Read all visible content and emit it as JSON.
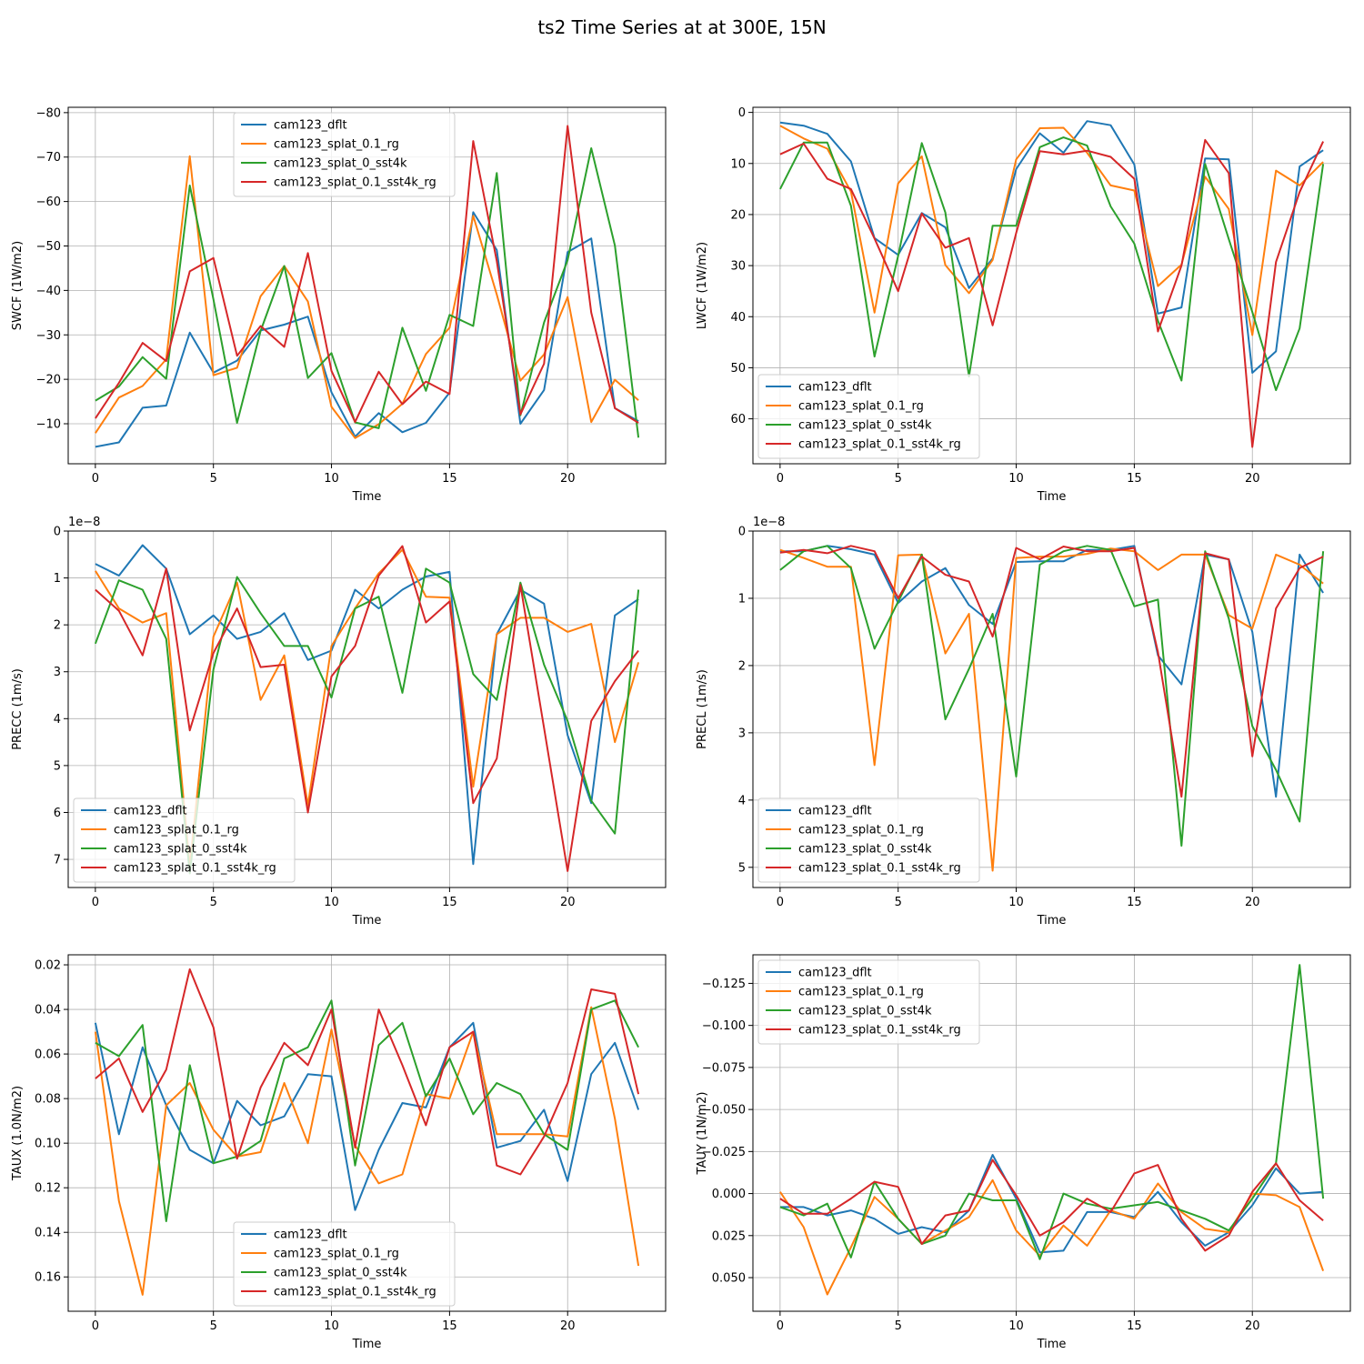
{
  "figure_title": "ts2 Time Series at at 300E, 15N",
  "colors": {
    "cam123_dflt": "#1f77b4",
    "cam123_splat_0.1_rg": "#ff7f0e",
    "cam123_splat_0_sst4k": "#2ca02c",
    "cam123_splat_0.1_sst4k_rg": "#d62728"
  },
  "chart_data": [
    {
      "type": "line",
      "xlabel": "Time",
      "ylabel": "SWCF (1W/m2)",
      "y_inverted": true,
      "xlim": [
        -1.15,
        24.15
      ],
      "ylim": [
        -1.0,
        -81.2
      ],
      "xticks": [
        0,
        5,
        10,
        15,
        20
      ],
      "xtick_labels": [
        "0",
        "5",
        "10",
        "15",
        "20"
      ],
      "yticks": [
        -10,
        -20,
        -30,
        -40,
        -50,
        -60,
        -70,
        -80
      ],
      "ytick_labels": [
        "−10",
        "−20",
        "−30",
        "−40",
        "−50",
        "−60",
        "−70",
        "−80"
      ],
      "offset_label": "",
      "legend_loc": "upper-center",
      "grid": true,
      "x": [
        0,
        1,
        2,
        3,
        4,
        5,
        6,
        7,
        8,
        9,
        10,
        11,
        12,
        13,
        14,
        15,
        16,
        17,
        18,
        19,
        20,
        21,
        22,
        23
      ],
      "series": [
        {
          "name": "cam123_dflt",
          "values": [
            -4.8,
            -5.8,
            -13.6,
            -14.1,
            -30.5,
            -21.5,
            -24.2,
            -31.0,
            -32.3,
            -34.1,
            -17.1,
            -7.1,
            -12.4,
            -8.1,
            -10.2,
            -17.0,
            -57.6,
            -49.1,
            -10.0,
            -17.6,
            -48.6,
            -51.7,
            -13.5,
            -10.6
          ]
        },
        {
          "name": "cam123_splat_0.1_rg",
          "values": [
            -7.9,
            -15.9,
            -18.5,
            -24.5,
            -70.2,
            -20.9,
            -22.6,
            -38.7,
            -45.5,
            -37.5,
            -13.8,
            -6.8,
            -9.9,
            -14.5,
            -25.7,
            -31.6,
            -56.8,
            -39.1,
            -19.7,
            -25.6,
            -38.5,
            -10.4,
            -19.9,
            -15.3
          ]
        },
        {
          "name": "cam123_splat_0_sst4k",
          "values": [
            -15.2,
            -18.4,
            -25.0,
            -20.1,
            -63.6,
            -38.0,
            -10.2,
            -30.9,
            -45.5,
            -20.3,
            -25.9,
            -10.3,
            -9.0,
            -31.6,
            -17.4,
            -34.5,
            -32.0,
            -66.4,
            -11.9,
            -32.8,
            -46.8,
            -72.0,
            -50.1,
            -6.9
          ]
        },
        {
          "name": "cam123_splat_0.1_sst4k_rg",
          "values": [
            -11.2,
            -19.2,
            -28.2,
            -24.1,
            -44.3,
            -47.3,
            -25.3,
            -32.0,
            -27.3,
            -48.4,
            -21.9,
            -10.4,
            -21.7,
            -14.4,
            -19.5,
            -16.7,
            -73.6,
            -46.6,
            -12.1,
            -23.5,
            -77.0,
            -35.0,
            -13.5,
            -10.2
          ]
        }
      ]
    },
    {
      "type": "line",
      "xlabel": "Time",
      "ylabel": "LWCF (1W/m2)",
      "y_inverted": true,
      "xlim": [
        -1.15,
        24.15
      ],
      "ylim": [
        68.8,
        -1.0
      ],
      "xticks": [
        0,
        5,
        10,
        15,
        20
      ],
      "xtick_labels": [
        "0",
        "5",
        "10",
        "15",
        "20"
      ],
      "yticks": [
        0,
        10,
        20,
        30,
        40,
        50,
        60
      ],
      "ytick_labels": [
        "0",
        "10",
        "20",
        "30",
        "40",
        "50",
        "60"
      ],
      "offset_label": "",
      "legend_loc": "lower-left",
      "grid": true,
      "x": [
        0,
        1,
        2,
        3,
        4,
        5,
        6,
        7,
        8,
        9,
        10,
        11,
        12,
        13,
        14,
        15,
        16,
        17,
        18,
        19,
        20,
        21,
        22,
        23
      ],
      "series": [
        {
          "name": "cam123_dflt",
          "values": [
            2.0,
            2.6,
            4.2,
            9.6,
            24.6,
            27.9,
            19.7,
            22.5,
            34.4,
            28.6,
            11.1,
            4.1,
            7.9,
            1.7,
            2.5,
            10.2,
            39.4,
            38.2,
            9.0,
            9.2,
            51.0,
            46.8,
            10.6,
            7.4
          ]
        },
        {
          "name": "cam123_splat_0.1_rg",
          "values": [
            2.6,
            5.1,
            7.1,
            15.5,
            39.2,
            13.9,
            8.6,
            29.9,
            35.4,
            28.9,
            9.2,
            3.1,
            3.0,
            7.9,
            14.3,
            15.3,
            34.0,
            29.8,
            12.6,
            18.9,
            43.6,
            11.4,
            14.3,
            9.7
          ]
        },
        {
          "name": "cam123_splat_0_sst4k",
          "values": [
            15.0,
            5.9,
            5.9,
            18.3,
            47.8,
            28.1,
            6.0,
            19.6,
            51.7,
            22.2,
            22.2,
            6.8,
            4.9,
            6.5,
            18.4,
            25.7,
            40.8,
            52.5,
            10.1,
            24.8,
            39.1,
            54.4,
            42.3,
            10.1
          ]
        },
        {
          "name": "cam123_splat_0.1_sst4k_rg",
          "values": [
            8.2,
            6.1,
            13.0,
            15.0,
            24.7,
            35.0,
            19.8,
            26.5,
            24.6,
            41.7,
            23.6,
            7.6,
            8.2,
            7.5,
            8.7,
            13.0,
            42.9,
            30.0,
            5.4,
            11.9,
            65.5,
            29.3,
            15.6,
            5.7
          ]
        }
      ]
    },
    {
      "type": "line",
      "xlabel": "Time",
      "ylabel": "PRECC (1m/s)",
      "y_inverted": true,
      "xlim": [
        -1.15,
        24.15
      ],
      "ylim": [
        7.6,
        0.0
      ],
      "xticks": [
        0,
        5,
        10,
        15,
        20
      ],
      "xtick_labels": [
        "0",
        "5",
        "10",
        "15",
        "20"
      ],
      "yticks": [
        0,
        1,
        2,
        3,
        4,
        5,
        6,
        7
      ],
      "ytick_labels": [
        "0",
        "1",
        "2",
        "3",
        "4",
        "5",
        "6",
        "7"
      ],
      "offset_label": "1e−8",
      "legend_loc": "lower-left",
      "grid": true,
      "x": [
        0,
        1,
        2,
        3,
        4,
        5,
        6,
        7,
        8,
        9,
        10,
        11,
        12,
        13,
        14,
        15,
        16,
        17,
        18,
        19,
        20,
        21,
        22,
        23
      ],
      "series": [
        {
          "name": "cam123_dflt",
          "values": [
            0.7,
            0.95,
            0.3,
            0.8,
            2.2,
            1.8,
            2.3,
            2.15,
            1.75,
            2.75,
            2.55,
            1.25,
            1.65,
            1.25,
            0.97,
            0.87,
            7.1,
            2.2,
            1.25,
            1.55,
            4.35,
            5.8,
            1.8,
            1.45
          ]
        },
        {
          "name": "cam123_splat_0.1_rg",
          "values": [
            0.85,
            1.65,
            1.95,
            1.75,
            7.15,
            2.25,
            1.1,
            3.6,
            2.65,
            5.85,
            2.45,
            1.65,
            0.9,
            0.4,
            1.4,
            1.42,
            5.45,
            2.2,
            1.85,
            1.85,
            2.15,
            1.98,
            4.5,
            2.8
          ]
        },
        {
          "name": "cam123_splat_0_sst4k",
          "values": [
            2.4,
            1.05,
            1.25,
            2.3,
            7.3,
            2.95,
            0.98,
            1.75,
            2.45,
            2.45,
            3.55,
            1.65,
            1.4,
            3.45,
            0.8,
            1.1,
            3.05,
            3.6,
            1.1,
            2.85,
            4.05,
            5.75,
            6.45,
            1.25
          ]
        },
        {
          "name": "cam123_splat_0.1_sst4k_rg",
          "values": [
            1.25,
            1.7,
            2.65,
            0.8,
            4.25,
            2.6,
            1.65,
            2.9,
            2.85,
            6.0,
            3.1,
            2.45,
            0.95,
            0.32,
            1.95,
            1.5,
            5.8,
            4.85,
            1.15,
            4.2,
            7.25,
            4.05,
            3.2,
            2.55
          ]
        }
      ]
    },
    {
      "type": "line",
      "xlabel": "Time",
      "ylabel": "PRECL (1m/s)",
      "y_inverted": true,
      "xlim": [
        -1.15,
        24.15
      ],
      "ylim": [
        5.3,
        0.0
      ],
      "xticks": [
        0,
        5,
        10,
        15,
        20
      ],
      "xtick_labels": [
        "0",
        "5",
        "10",
        "15",
        "20"
      ],
      "yticks": [
        0,
        1,
        2,
        3,
        4,
        5
      ],
      "ytick_labels": [
        "0",
        "1",
        "2",
        "3",
        "4",
        "5"
      ],
      "offset_label": "1e−8",
      "legend_loc": "lower-left",
      "grid": true,
      "x": [
        0,
        1,
        2,
        3,
        4,
        5,
        6,
        7,
        8,
        9,
        10,
        11,
        12,
        13,
        14,
        15,
        16,
        17,
        18,
        19,
        20,
        21,
        22,
        23
      ],
      "series": [
        {
          "name": "cam123_dflt",
          "values": [
            0.3,
            0.3,
            0.22,
            0.27,
            0.35,
            1.07,
            0.75,
            0.55,
            1.1,
            1.38,
            0.46,
            0.45,
            0.45,
            0.28,
            0.28,
            0.22,
            1.85,
            2.28,
            0.35,
            0.42,
            1.5,
            3.95,
            0.35,
            0.92
          ]
        },
        {
          "name": "cam123_splat_0.1_rg",
          "values": [
            0.28,
            0.4,
            0.53,
            0.53,
            3.48,
            0.36,
            0.35,
            1.82,
            1.23,
            5.05,
            0.4,
            0.38,
            0.38,
            0.34,
            0.26,
            0.3,
            0.58,
            0.35,
            0.35,
            1.25,
            1.45,
            0.35,
            0.5,
            0.78
          ]
        },
        {
          "name": "cam123_splat_0_sst4k",
          "values": [
            0.58,
            0.3,
            0.22,
            0.55,
            1.75,
            1.05,
            0.35,
            2.8,
            2.05,
            1.23,
            3.65,
            0.5,
            0.3,
            0.22,
            0.28,
            1.12,
            1.02,
            4.68,
            0.3,
            1.3,
            2.9,
            3.55,
            4.32,
            0.3
          ]
        },
        {
          "name": "cam123_splat_0.1_sst4k_rg",
          "values": [
            0.32,
            0.28,
            0.33,
            0.22,
            0.3,
            1.0,
            0.38,
            0.65,
            0.75,
            1.57,
            0.25,
            0.42,
            0.23,
            0.3,
            0.3,
            0.25,
            1.8,
            3.95,
            0.33,
            0.42,
            3.35,
            1.15,
            0.55,
            0.38
          ]
        }
      ]
    },
    {
      "type": "line",
      "xlabel": "Time",
      "ylabel": "TAUX (1.0N/m2)",
      "y_inverted": true,
      "xlim": [
        -1.15,
        24.15
      ],
      "ylim": [
        0.1754,
        0.0155
      ],
      "xticks": [
        0,
        5,
        10,
        15,
        20
      ],
      "xtick_labels": [
        "0",
        "5",
        "10",
        "15",
        "20"
      ],
      "yticks": [
        0.02,
        0.04,
        0.06,
        0.08,
        0.1,
        0.12,
        0.14,
        0.16
      ],
      "ytick_labels": [
        "0.02",
        "0.04",
        "0.06",
        "0.08",
        "0.10",
        "0.12",
        "0.14",
        "0.16"
      ],
      "offset_label": "",
      "legend_loc": "lower-center",
      "grid": true,
      "x": [
        0,
        1,
        2,
        3,
        4,
        5,
        6,
        7,
        8,
        9,
        10,
        11,
        12,
        13,
        14,
        15,
        16,
        17,
        18,
        19,
        20,
        21,
        22,
        23
      ],
      "series": [
        {
          "name": "cam123_dflt",
          "values": [
            0.046,
            0.096,
            0.057,
            0.083,
            0.103,
            0.109,
            0.081,
            0.092,
            0.088,
            0.069,
            0.07,
            0.13,
            0.103,
            0.082,
            0.084,
            0.057,
            0.046,
            0.102,
            0.099,
            0.085,
            0.117,
            0.069,
            0.055,
            0.085
          ]
        },
        {
          "name": "cam123_splat_0.1_rg",
          "values": [
            0.05,
            0.126,
            0.168,
            0.083,
            0.073,
            0.094,
            0.106,
            0.104,
            0.073,
            0.1,
            0.049,
            0.101,
            0.118,
            0.114,
            0.078,
            0.08,
            0.05,
            0.096,
            0.096,
            0.096,
            0.097,
            0.039,
            0.089,
            0.155
          ]
        },
        {
          "name": "cam123_splat_0_sst4k",
          "values": [
            0.055,
            0.061,
            0.047,
            0.135,
            0.065,
            0.109,
            0.106,
            0.099,
            0.062,
            0.057,
            0.036,
            0.11,
            0.056,
            0.046,
            0.079,
            0.062,
            0.087,
            0.073,
            0.078,
            0.096,
            0.103,
            0.04,
            0.036,
            0.057
          ]
        },
        {
          "name": "cam123_splat_0.1_sst4k_rg",
          "values": [
            0.071,
            0.062,
            0.086,
            0.067,
            0.022,
            0.048,
            0.107,
            0.075,
            0.055,
            0.065,
            0.04,
            0.102,
            0.04,
            0.065,
            0.092,
            0.057,
            0.05,
            0.11,
            0.114,
            0.097,
            0.073,
            0.031,
            0.033,
            0.078
          ]
        }
      ]
    },
    {
      "type": "line",
      "xlabel": "Time",
      "ylabel": "TAUY (1N/m2)",
      "y_inverted": true,
      "xlim": [
        -1.15,
        24.15
      ],
      "ylim": [
        0.07,
        -0.142
      ],
      "xticks": [
        0,
        5,
        10,
        15,
        20
      ],
      "xtick_labels": [
        "0",
        "5",
        "10",
        "15",
        "20"
      ],
      "yticks": [
        -0.125,
        -0.1,
        -0.075,
        -0.05,
        -0.025,
        0.0,
        0.025,
        0.05
      ],
      "ytick_labels": [
        "−0.125",
        "−0.100",
        "−0.075",
        "−0.050",
        "−0.025",
        "0.000",
        "0.025",
        "0.050"
      ],
      "offset_label": "",
      "legend_loc": "upper-left",
      "grid": true,
      "x": [
        0,
        1,
        2,
        3,
        4,
        5,
        6,
        7,
        8,
        9,
        10,
        11,
        12,
        13,
        14,
        15,
        16,
        17,
        18,
        19,
        20,
        21,
        22,
        23
      ],
      "series": [
        {
          "name": "cam123_dflt",
          "values": [
            0.008,
            0.008,
            0.013,
            0.01,
            0.015,
            0.024,
            0.02,
            0.023,
            0.01,
            -0.023,
            0.003,
            0.035,
            0.034,
            0.011,
            0.011,
            0.014,
            -0.001,
            0.017,
            0.031,
            0.023,
            0.007,
            -0.015,
            0.0,
            -0.001
          ]
        },
        {
          "name": "cam123_splat_0.1_rg",
          "values": [
            -0.001,
            0.02,
            0.06,
            0.032,
            0.002,
            0.015,
            0.03,
            0.022,
            0.014,
            -0.008,
            0.022,
            0.037,
            0.019,
            0.031,
            0.01,
            0.015,
            -0.006,
            0.011,
            0.021,
            0.023,
            0.0,
            0.001,
            0.008,
            0.046
          ]
        },
        {
          "name": "cam123_splat_0_sst4k",
          "values": [
            0.008,
            0.013,
            0.006,
            0.038,
            -0.007,
            0.015,
            0.03,
            0.025,
            0.0,
            0.004,
            0.004,
            0.039,
            0.0,
            0.006,
            0.009,
            0.007,
            0.005,
            0.01,
            0.015,
            0.022,
            0.003,
            -0.018,
            -0.136,
            0.003
          ]
        },
        {
          "name": "cam123_splat_0.1_sst4k_rg",
          "values": [
            0.003,
            0.012,
            0.012,
            0.003,
            -0.007,
            -0.004,
            0.03,
            0.013,
            0.01,
            -0.02,
            0.001,
            0.025,
            0.017,
            0.003,
            0.011,
            -0.012,
            -0.017,
            0.015,
            0.034,
            0.025,
            -0.001,
            -0.018,
            0.004,
            0.016
          ]
        }
      ]
    }
  ]
}
